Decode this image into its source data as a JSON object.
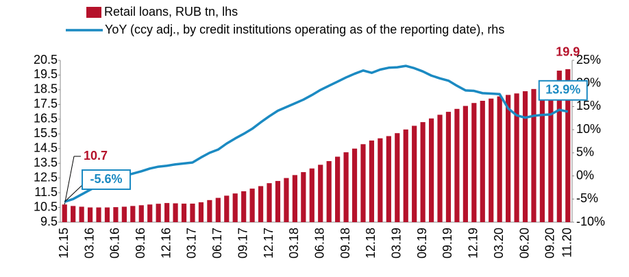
{
  "chart_data": {
    "type": "bar-line",
    "categories": [
      "12.15",
      null,
      null,
      "03.16",
      null,
      null,
      "06.16",
      null,
      null,
      "09.16",
      null,
      null,
      "12.16",
      null,
      null,
      "03.17",
      null,
      null,
      "06.17",
      null,
      null,
      "09.17",
      null,
      null,
      "12.17",
      null,
      null,
      "03.18",
      null,
      null,
      "06.18",
      null,
      null,
      "09.18",
      null,
      null,
      "12.18",
      null,
      null,
      "03.19",
      null,
      null,
      "06.19",
      null,
      null,
      "09.19",
      null,
      null,
      "12.19",
      null,
      null,
      "03.20",
      null,
      null,
      "06.20",
      null,
      null,
      "09.20",
      null,
      "11.20"
    ],
    "series": [
      {
        "name": "Retail loans, RUB tn, lhs",
        "type": "bar",
        "color": "#b5122b",
        "values": [
          10.7,
          10.6,
          10.55,
          10.5,
          10.5,
          10.5,
          10.52,
          10.55,
          10.6,
          10.65,
          10.7,
          10.75,
          10.8,
          10.78,
          10.76,
          10.76,
          10.85,
          11.0,
          11.15,
          11.3,
          11.45,
          11.6,
          11.78,
          11.95,
          12.15,
          12.3,
          12.5,
          12.7,
          12.9,
          13.15,
          13.4,
          13.65,
          13.95,
          14.25,
          14.5,
          14.8,
          15.05,
          15.2,
          15.35,
          15.55,
          15.8,
          16.05,
          16.3,
          16.55,
          16.8,
          17.0,
          17.2,
          17.4,
          17.6,
          17.75,
          17.9,
          18.05,
          18.15,
          18.25,
          18.4,
          18.55,
          18.75,
          18.95,
          19.8,
          19.9
        ],
        "value_labels": [
          "10.7",
          null,
          null,
          null,
          null,
          null,
          null,
          null,
          null,
          null,
          null,
          null,
          null,
          null,
          null,
          null,
          null,
          null,
          null,
          null,
          null,
          null,
          null,
          null,
          null,
          null,
          null,
          null,
          null,
          null,
          null,
          null,
          null,
          null,
          null,
          null,
          null,
          null,
          null,
          null,
          null,
          null,
          null,
          null,
          null,
          null,
          null,
          null,
          null,
          null,
          null,
          null,
          null,
          null,
          null,
          null,
          null,
          null,
          null,
          "19.9"
        ]
      },
      {
        "name": "YoY (ccy adj., by credit institutions operating as of the reporting date), rhs",
        "type": "line",
        "axis": "y2",
        "color": "#1b8ac2",
        "values": [
          -5.6,
          -5.0,
          -4.0,
          -3.0,
          -2.0,
          -1.0,
          -0.5,
          0.0,
          0.5,
          1.0,
          1.6,
          2.0,
          2.2,
          2.5,
          2.7,
          2.9,
          4.0,
          5.0,
          5.7,
          7.0,
          8.1,
          9.1,
          10.2,
          11.6,
          12.9,
          14.1,
          14.9,
          15.7,
          16.5,
          17.5,
          18.6,
          19.5,
          20.4,
          21.3,
          22.1,
          22.8,
          22.3,
          23.0,
          23.4,
          23.5,
          23.8,
          23.3,
          22.6,
          21.7,
          21.1,
          20.6,
          19.5,
          18.5,
          18.4,
          17.9,
          17.8,
          17.7,
          14.6,
          13.1,
          12.6,
          13.0,
          13.2,
          13.3,
          14.3,
          13.9
        ],
        "value_labels": [
          "-5.6%",
          null,
          null,
          null,
          null,
          null,
          null,
          null,
          null,
          null,
          null,
          null,
          null,
          null,
          null,
          null,
          null,
          null,
          null,
          null,
          null,
          null,
          null,
          null,
          null,
          null,
          null,
          null,
          null,
          null,
          null,
          null,
          null,
          null,
          null,
          null,
          null,
          null,
          null,
          null,
          null,
          null,
          null,
          null,
          null,
          null,
          null,
          null,
          null,
          null,
          null,
          null,
          null,
          null,
          null,
          null,
          null,
          null,
          null,
          "13.9%"
        ]
      }
    ],
    "ylim": [
      9.5,
      20.5
    ],
    "yticks": [
      9.5,
      10.5,
      11.5,
      12.5,
      13.5,
      14.5,
      15.5,
      16.5,
      17.5,
      18.5,
      19.5,
      20.5
    ],
    "y2lim": [
      -10,
      25
    ],
    "y2ticks": [
      {
        "value": -10,
        "label": "-10%"
      },
      {
        "value": -5,
        "label": "-5%"
      },
      {
        "value": 0,
        "label": "0%"
      },
      {
        "value": 5,
        "label": "5%"
      },
      {
        "value": 10,
        "label": "10%"
      },
      {
        "value": 15,
        "label": "15%"
      },
      {
        "value": 20,
        "label": "20%"
      },
      {
        "value": 25,
        "label": "25%"
      }
    ],
    "grid": false,
    "legend": "top"
  }
}
